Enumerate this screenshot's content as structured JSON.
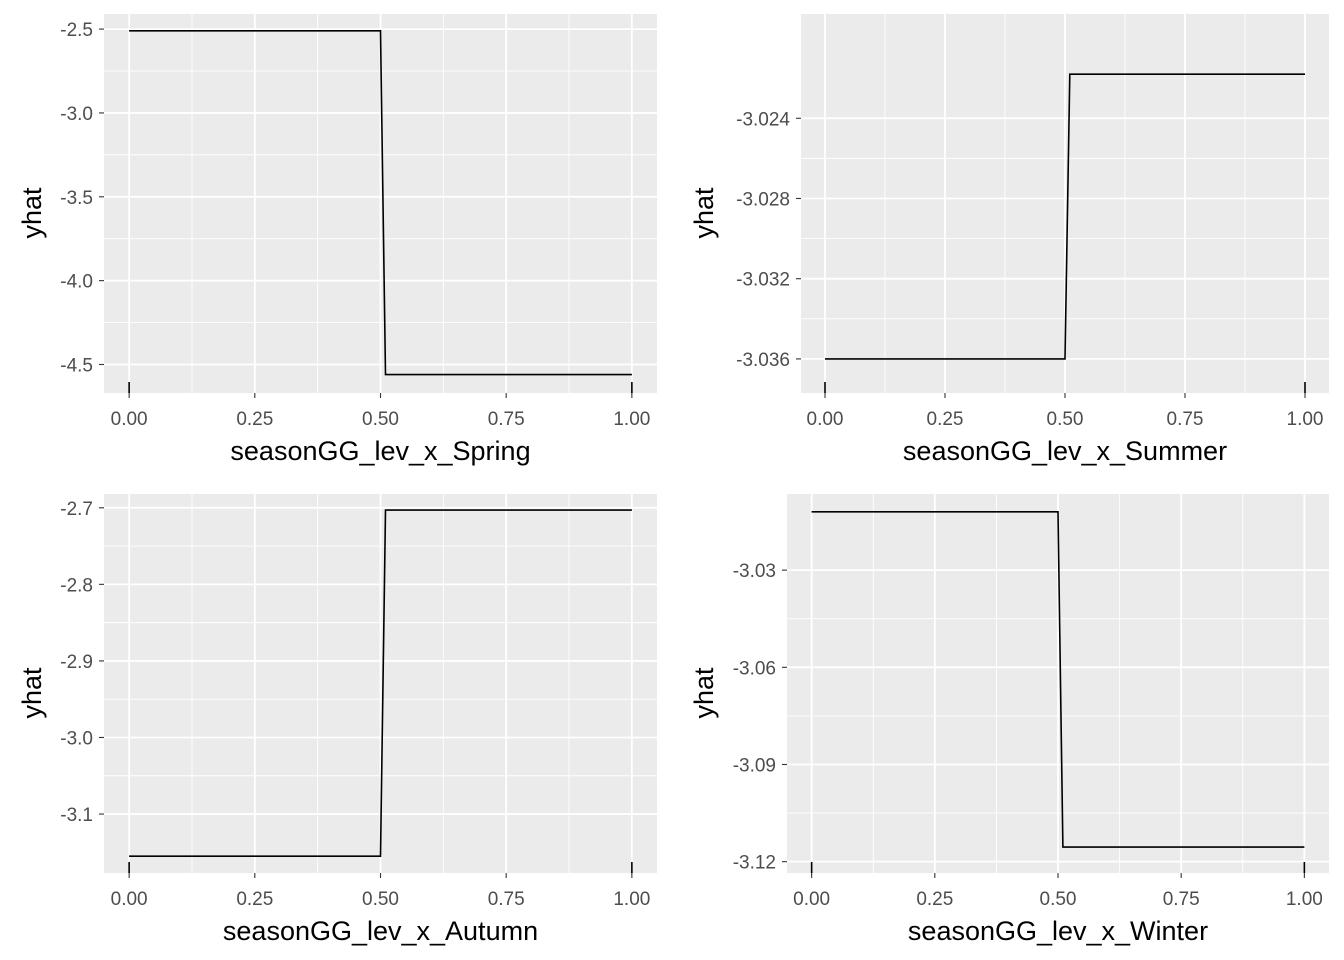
{
  "chart_data": [
    {
      "type": "line",
      "line_style": "step",
      "xlabel": "seasonGG_lev_x_Spring",
      "ylabel": "yhat",
      "xlim": [
        -0.05,
        1.05
      ],
      "ylim": [
        -4.67,
        -2.41
      ],
      "x_ticks": [
        0,
        0.25,
        0.5,
        0.75,
        1
      ],
      "x_tick_labels": [
        "0.00",
        "0.25",
        "0.50",
        "0.75",
        "1.00"
      ],
      "y_ticks": [
        -2.5,
        -3.0,
        -3.5,
        -4.0,
        -4.5
      ],
      "y_tick_labels": [
        "-2.5",
        "-3.0",
        "-3.5",
        "-4.0",
        "-4.5"
      ],
      "x": [
        0,
        0.5,
        0.51,
        1
      ],
      "y": [
        -2.51,
        -2.51,
        -4.56,
        -4.56
      ],
      "rug": [
        0,
        1
      ],
      "grid": true
    },
    {
      "type": "line",
      "line_style": "step",
      "xlabel": "seasonGG_lev_x_Summer",
      "ylabel": "yhat",
      "xlim": [
        -0.05,
        1.05
      ],
      "ylim": [
        -3.0377,
        -3.0188
      ],
      "x_ticks": [
        0,
        0.25,
        0.5,
        0.75,
        1
      ],
      "x_tick_labels": [
        "0.00",
        "0.25",
        "0.50",
        "0.75",
        "1.00"
      ],
      "y_ticks": [
        -3.024,
        -3.028,
        -3.032,
        -3.036
      ],
      "y_tick_labels": [
        "-3.024",
        "-3.028",
        "-3.032",
        "-3.036"
      ],
      "x": [
        0,
        0.5,
        0.51,
        1
      ],
      "y": [
        -3.036,
        -3.036,
        -3.0218,
        -3.0218
      ],
      "rug": [
        0,
        1
      ],
      "grid": true
    },
    {
      "type": "line",
      "line_style": "step",
      "xlabel": "seasonGG_lev_x_Autumn",
      "ylabel": "yhat",
      "xlim": [
        -0.05,
        1.05
      ],
      "ylim": [
        -3.177,
        -2.682
      ],
      "x_ticks": [
        0,
        0.25,
        0.5,
        0.75,
        1
      ],
      "x_tick_labels": [
        "0.00",
        "0.25",
        "0.50",
        "0.75",
        "1.00"
      ],
      "y_ticks": [
        -2.7,
        -2.8,
        -2.9,
        -3.0,
        -3.1
      ],
      "y_tick_labels": [
        "-2.7",
        "-2.8",
        "-2.9",
        "-3.0",
        "-3.1"
      ],
      "x": [
        0,
        0.5,
        0.51,
        1
      ],
      "y": [
        -3.155,
        -3.155,
        -2.703,
        -2.703
      ],
      "rug": [
        0,
        1
      ],
      "grid": true
    },
    {
      "type": "line",
      "line_style": "step",
      "xlabel": "seasonGG_lev_x_Winter",
      "ylabel": "yhat",
      "xlim": [
        -0.05,
        1.05
      ],
      "ylim": [
        -3.1235,
        -3.0065
      ],
      "x_ticks": [
        0,
        0.25,
        0.5,
        0.75,
        1
      ],
      "x_tick_labels": [
        "0.00",
        "0.25",
        "0.50",
        "0.75",
        "1.00"
      ],
      "y_ticks": [
        -3.03,
        -3.06,
        -3.09,
        -3.12
      ],
      "y_tick_labels": [
        "-3.03",
        "-3.06",
        "-3.09",
        "-3.12"
      ],
      "x": [
        0,
        0.5,
        0.51,
        1
      ],
      "y": [
        -3.012,
        -3.012,
        -3.1155,
        -3.1155
      ],
      "rug": [
        0,
        1
      ],
      "grid": true
    }
  ],
  "colors": {
    "panel_background": "#ebebeb",
    "grid_major": "#ffffff",
    "line": "#000000",
    "tick_label": "#4d4d4d"
  }
}
